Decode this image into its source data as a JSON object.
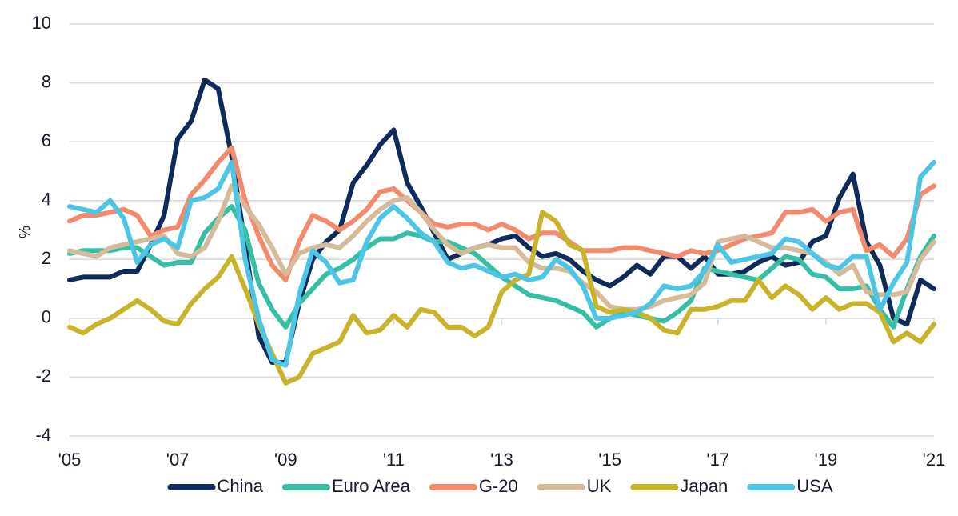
{
  "chart_data": {
    "type": "line",
    "ylabel": "%",
    "xlim": [
      2005,
      2021
    ],
    "xticks": [
      {
        "value": 2005,
        "label": "'05"
      },
      {
        "value": 2007,
        "label": "'07"
      },
      {
        "value": 2009,
        "label": "'09"
      },
      {
        "value": 2011,
        "label": "'11"
      },
      {
        "value": 2013,
        "label": "'13"
      },
      {
        "value": 2015,
        "label": "'15"
      },
      {
        "value": 2017,
        "label": "'17"
      },
      {
        "value": 2019,
        "label": "'19"
      },
      {
        "value": 2021,
        "label": "'21"
      }
    ],
    "ylim": [
      -4,
      10
    ],
    "yticks": [
      -4,
      -2,
      0,
      2,
      4,
      6,
      8,
      10
    ],
    "grid": true,
    "legend": "bottom",
    "x": [
      2005,
      2005.25,
      2005.5,
      2005.75,
      2006,
      2006.25,
      2006.5,
      2006.75,
      2007,
      2007.25,
      2007.5,
      2007.75,
      2008,
      2008.25,
      2008.5,
      2008.75,
      2009,
      2009.25,
      2009.5,
      2009.75,
      2010,
      2010.25,
      2010.5,
      2010.75,
      2011,
      2011.25,
      2011.5,
      2011.75,
      2012,
      2012.25,
      2012.5,
      2012.75,
      2013,
      2013.25,
      2013.5,
      2013.75,
      2014,
      2014.25,
      2014.5,
      2014.75,
      2015,
      2015.25,
      2015.5,
      2015.75,
      2016,
      2016.25,
      2016.5,
      2016.75,
      2017,
      2017.25,
      2017.5,
      2017.75,
      2018,
      2018.25,
      2018.5,
      2018.75,
      2019,
      2019.25,
      2019.5,
      2019.75,
      2020,
      2020.25,
      2020.5,
      2020.75,
      2021
    ],
    "series": [
      {
        "name": "China",
        "color": "#0f2b5b",
        "values": [
          1.3,
          1.4,
          1.4,
          1.4,
          1.6,
          1.6,
          2.5,
          3.5,
          6.1,
          6.7,
          8.1,
          7.8,
          5.5,
          2.5,
          -0.6,
          -1.5,
          -1.5,
          0.5,
          2.0,
          2.6,
          3.0,
          4.6,
          5.2,
          5.9,
          6.4,
          4.6,
          3.8,
          2.9,
          2.0,
          2.2,
          2.4,
          2.5,
          2.7,
          2.8,
          2.4,
          2.1,
          2.2,
          2.0,
          1.6,
          1.3,
          1.1,
          1.4,
          1.8,
          1.5,
          2.1,
          2.1,
          1.7,
          2.1,
          1.5,
          1.5,
          1.6,
          1.9,
          2.1,
          1.8,
          1.9,
          2.6,
          2.8,
          4.1,
          4.9,
          2.6,
          1.8,
          0.0,
          -0.2,
          1.3,
          1.0
        ]
      },
      {
        "name": "Euro Area",
        "color": "#35bfa5",
        "values": [
          2.2,
          2.3,
          2.3,
          2.3,
          2.4,
          2.4,
          2.1,
          1.8,
          1.9,
          1.9,
          2.9,
          3.4,
          3.8,
          3.0,
          1.2,
          0.3,
          -0.3,
          0.5,
          1.0,
          1.5,
          1.7,
          2.0,
          2.4,
          2.7,
          2.7,
          2.9,
          2.8,
          2.6,
          2.6,
          2.4,
          2.2,
          1.8,
          1.4,
          1.1,
          0.8,
          0.7,
          0.6,
          0.4,
          0.2,
          -0.3,
          0.0,
          0.2,
          0.1,
          0.0,
          -0.1,
          0.2,
          0.6,
          1.7,
          1.6,
          1.5,
          1.4,
          1.3,
          1.7,
          2.1,
          2.0,
          1.5,
          1.4,
          1.0,
          1.0,
          1.1,
          0.3,
          -0.3,
          1.0,
          2.1,
          2.8
        ]
      },
      {
        "name": "G-20",
        "color": "#f38a6c",
        "values": [
          3.3,
          3.5,
          3.5,
          3.6,
          3.7,
          3.5,
          2.8,
          3.0,
          3.1,
          4.2,
          4.7,
          5.3,
          5.8,
          4.0,
          2.8,
          1.8,
          1.3,
          2.6,
          3.5,
          3.3,
          3.0,
          3.3,
          3.7,
          4.3,
          4.4,
          4.0,
          3.6,
          3.2,
          3.1,
          3.2,
          3.2,
          3.0,
          3.2,
          3.0,
          2.7,
          2.9,
          2.9,
          2.6,
          2.3,
          2.3,
          2.3,
          2.4,
          2.4,
          2.3,
          2.2,
          2.1,
          2.3,
          2.2,
          2.3,
          2.5,
          2.7,
          2.8,
          2.9,
          3.6,
          3.6,
          3.7,
          3.3,
          3.6,
          3.7,
          2.3,
          2.5,
          2.1,
          2.7,
          4.2,
          4.5
        ]
      },
      {
        "name": "UK",
        "color": "#d6bb9b",
        "values": [
          2.3,
          2.2,
          2.1,
          2.4,
          2.5,
          2.6,
          2.7,
          2.8,
          2.2,
          2.1,
          2.4,
          3.3,
          4.5,
          3.8,
          3.2,
          2.4,
          1.5,
          2.2,
          2.4,
          2.5,
          2.4,
          2.8,
          3.3,
          3.7,
          4.0,
          4.1,
          3.6,
          3.0,
          2.5,
          2.2,
          2.4,
          2.5,
          2.4,
          2.4,
          1.9,
          1.7,
          1.7,
          1.6,
          1.2,
          0.9,
          0.4,
          0.3,
          0.3,
          0.4,
          0.6,
          0.7,
          0.8,
          1.2,
          2.6,
          2.7,
          2.8,
          2.6,
          2.4,
          2.4,
          2.3,
          2.2,
          1.9,
          1.5,
          1.8,
          0.9,
          0.8,
          0.8,
          0.9,
          2.0,
          2.6
        ]
      },
      {
        "name": "Japan",
        "color": "#c8b32a",
        "values": [
          -0.3,
          -0.5,
          -0.2,
          0.0,
          0.3,
          0.6,
          0.3,
          -0.1,
          -0.2,
          0.5,
          1.0,
          1.4,
          2.1,
          1.0,
          -0.2,
          -1.2,
          -2.2,
          -2.0,
          -1.2,
          -1.0,
          -0.8,
          0.1,
          -0.5,
          -0.4,
          0.1,
          -0.3,
          0.3,
          0.2,
          -0.3,
          -0.3,
          -0.6,
          -0.3,
          0.9,
          1.3,
          1.5,
          3.6,
          3.3,
          2.5,
          2.3,
          0.4,
          0.2,
          0.3,
          0.2,
          0.0,
          -0.4,
          -0.5,
          0.3,
          0.3,
          0.4,
          0.6,
          0.6,
          1.3,
          0.7,
          1.1,
          0.8,
          0.3,
          0.7,
          0.3,
          0.5,
          0.5,
          0.2,
          -0.8,
          -0.5,
          -0.8,
          -0.2
        ]
      },
      {
        "name": "USA",
        "color": "#4dc5e5",
        "values": [
          3.8,
          3.7,
          3.6,
          4.0,
          3.4,
          1.9,
          2.5,
          2.7,
          2.4,
          4.0,
          4.1,
          4.4,
          5.3,
          2.0,
          0.0,
          -1.4,
          -1.6,
          0.8,
          2.3,
          1.9,
          1.2,
          1.3,
          2.6,
          3.4,
          3.8,
          3.4,
          2.9,
          2.6,
          1.9,
          1.7,
          1.8,
          1.6,
          1.4,
          1.5,
          1.3,
          1.4,
          2.0,
          1.7,
          1.1,
          0.0,
          0.0,
          0.1,
          0.2,
          0.5,
          1.1,
          1.0,
          1.1,
          1.6,
          2.5,
          1.9,
          2.0,
          2.1,
          2.2,
          2.7,
          2.6,
          2.2,
          1.8,
          1.7,
          2.1,
          2.1,
          0.3,
          1.2,
          1.9,
          4.8,
          5.3
        ]
      }
    ]
  }
}
